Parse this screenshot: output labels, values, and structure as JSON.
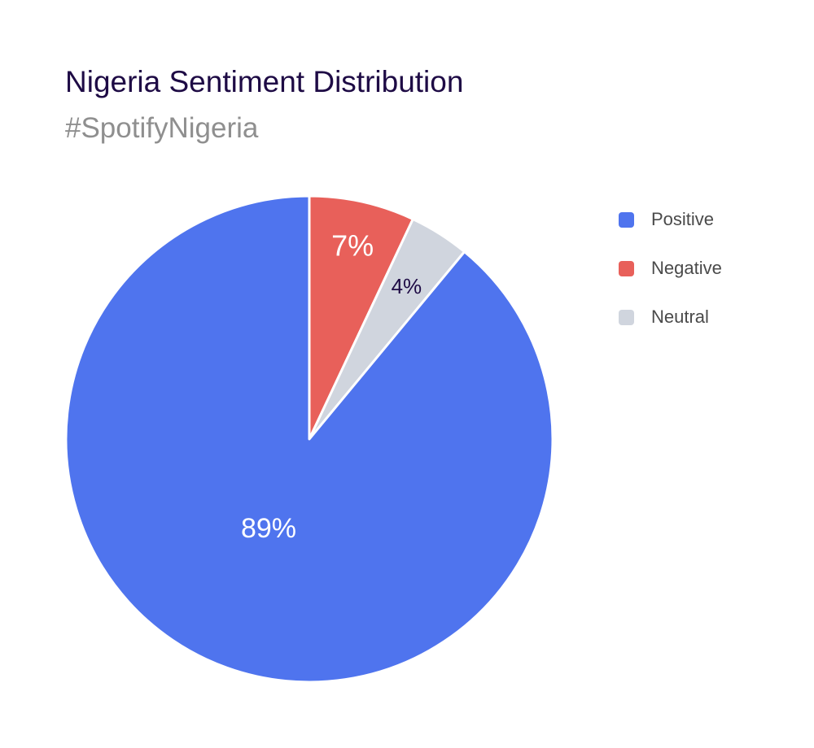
{
  "chart_data": {
    "type": "pie",
    "title": "Nigeria Sentiment Distribution",
    "subtitle": "#SpotifyNigeria",
    "legend_position": "top-right",
    "slices": [
      {
        "name": "Positive",
        "value": 89,
        "label": "89%",
        "color": "#4f74ee",
        "label_color": "#ffffff"
      },
      {
        "name": "Negative",
        "value": 7,
        "label": "7%",
        "color": "#e8605a",
        "label_color": "#ffffff"
      },
      {
        "name": "Neutral",
        "value": 4,
        "label": "4%",
        "color": "#d0d5de",
        "label_color": "#1e0b45"
      }
    ]
  }
}
